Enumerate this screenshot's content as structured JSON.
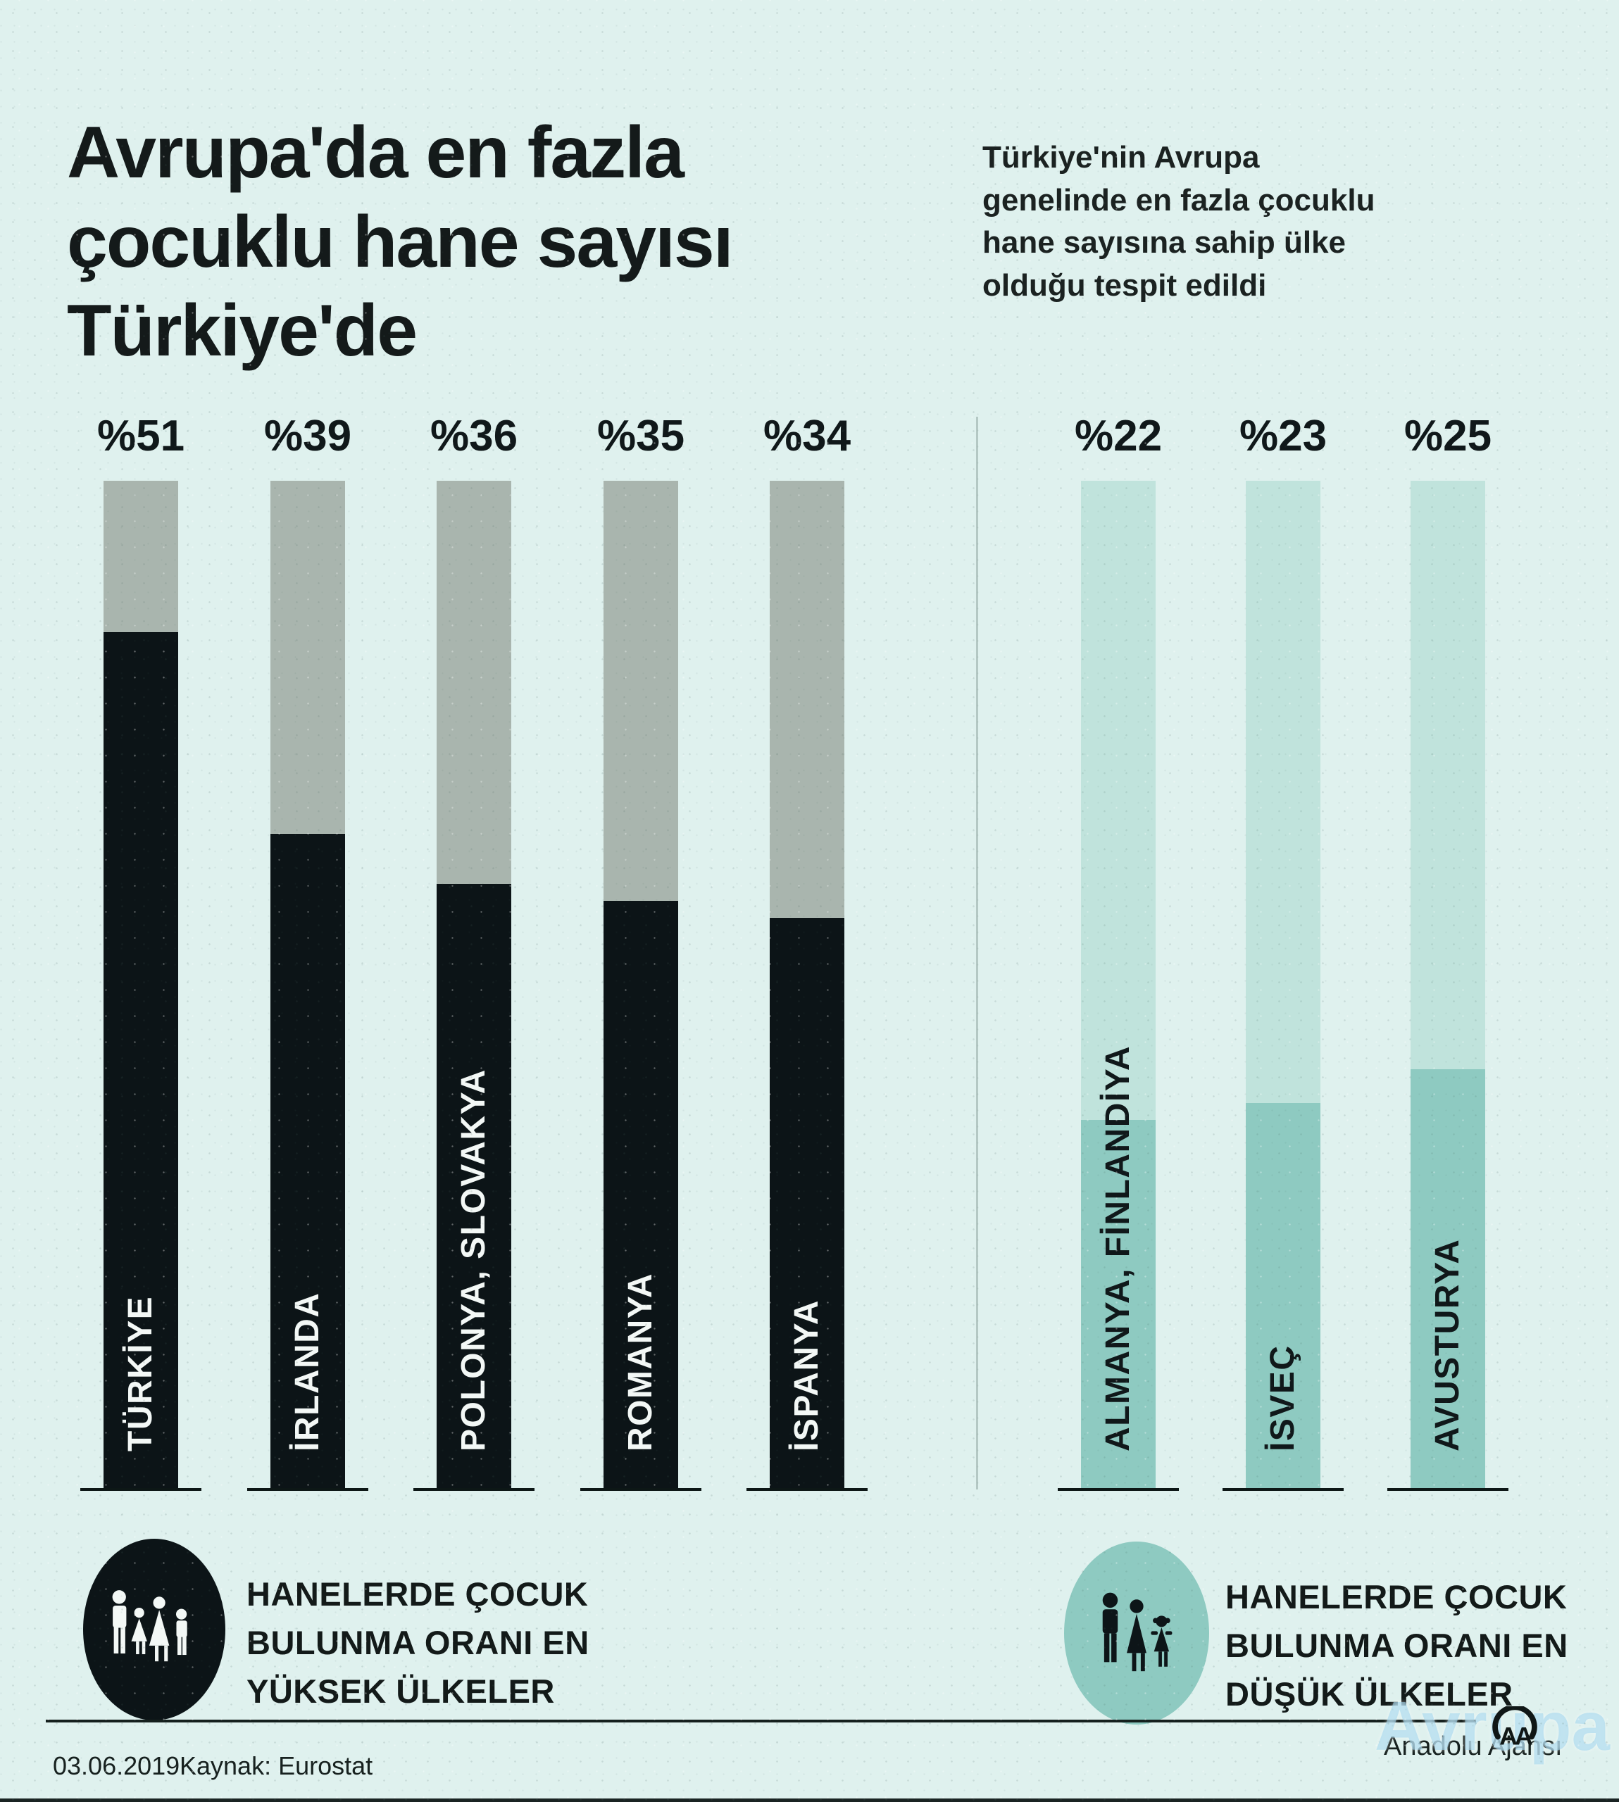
{
  "title": {
    "lines": [
      "Avrupa'da en fazla",
      "çocuklu hane sayısı",
      "Türkiye'de"
    ]
  },
  "intro": {
    "lines": [
      "Türkiye'nin Avrupa",
      "genelinde en fazla çocuklu",
      "hane sayısına sahip ülke",
      "olduğu tespit edildi"
    ]
  },
  "chart_data": {
    "type": "bar",
    "title": "Avrupa'da en fazla çocuklu hane sayısı Türkiye'de",
    "value_prefix": "%",
    "ylim": [
      0,
      60
    ],
    "grid": false,
    "xlabel": "",
    "ylabel": "",
    "groups": [
      {
        "name": "Hanelerde çocuk bulunma oranı en yüksek ülkeler",
        "categories": [
          "TÜRKİYE",
          "İRLANDA",
          "POLONYA, SLOVAKYA",
          "ROMANYA",
          "İSPANYA"
        ],
        "values": [
          51,
          39,
          36,
          35,
          34
        ],
        "value_labels": [
          "%51",
          "%39",
          "%36",
          "%35",
          "%34"
        ]
      },
      {
        "name": "Hanelerde çocuk bulunma oranı en düşük ülkeler",
        "categories": [
          "ALMANYA, FİNLANDİYA",
          "İSVEÇ",
          "AVUSTURYA"
        ],
        "values": [
          22,
          23,
          25
        ],
        "value_labels": [
          "%22",
          "%23",
          "%25"
        ]
      }
    ]
  },
  "colors": {
    "background": "#dff1ee",
    "high_fill": "#0c1417",
    "high_track": "#a9b5ae",
    "high_label": "#f3f8f6",
    "low_fill": "#8ecac1",
    "low_track": "#c0e3dc",
    "low_label": "#10181a",
    "divider": "#b4c8c4",
    "text": "#131a19"
  },
  "legend_high": {
    "lines": [
      "HANELERDE ÇOCUK",
      "BULUNMA ORANI EN",
      "YÜKSEK ÜLKELER"
    ],
    "icon": "family-4-icon"
  },
  "legend_low": {
    "lines": [
      "HANELERDE ÇOCUK",
      "BULUNMA ORANI EN",
      "DÜŞÜK ÜLKELER"
    ],
    "icon": "family-3-icon"
  },
  "footer": {
    "date": "03.06.2019",
    "source_label": "Kaynak: Eurostat",
    "agency": "Anadolu Ajansı",
    "logo_text": "AA",
    "watermark": "Avrupa"
  }
}
